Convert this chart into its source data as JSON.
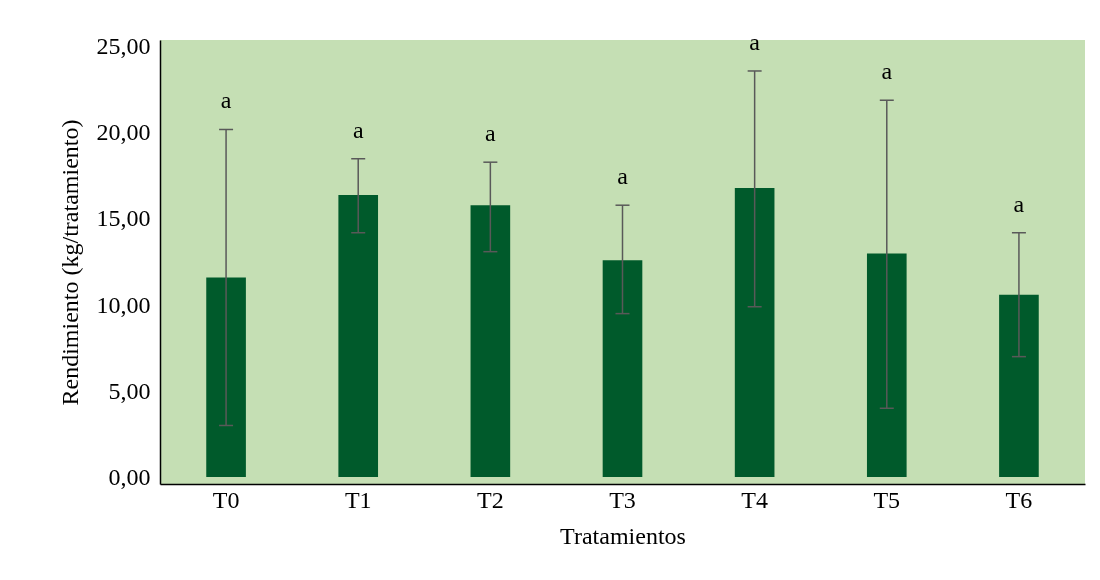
{
  "chart_data": {
    "type": "bar",
    "xlabel": "Tratamientos",
    "ylabel": "Rendimiento  (kg/tratamiento)",
    "categories": [
      "T0",
      "T1",
      "T2",
      "T3",
      "T4",
      "T5",
      "T6"
    ],
    "values": [
      11.6,
      16.4,
      15.8,
      12.6,
      16.8,
      13.0,
      10.6
    ],
    "color": "#005a2b",
    "errors": [
      [
        3.0,
        20.2
      ],
      [
        14.2,
        18.5
      ],
      [
        13.1,
        18.3
      ],
      [
        9.5,
        15.8
      ],
      [
        9.9,
        23.6
      ],
      [
        4.0,
        21.9
      ],
      [
        7.0,
        14.2
      ]
    ],
    "ylim": [
      -0.4,
      25.4
    ],
    "yticks": [
      {
        "value": 0,
        "label": "0,00"
      },
      {
        "value": 5,
        "label": "5,00"
      },
      {
        "value": 10,
        "label": "10,00"
      },
      {
        "value": 15,
        "label": "15,00"
      },
      {
        "value": 20,
        "label": "20,00"
      },
      {
        "value": 25,
        "label": "25,00"
      }
    ],
    "grid": false,
    "annotations": [
      {
        "text": "a",
        "x": "T0",
        "y": 20.2
      },
      {
        "text": "a",
        "x": "T1",
        "y": 18.5
      },
      {
        "text": "a",
        "x": "T2",
        "y": 18.3
      },
      {
        "text": "a",
        "x": "T3",
        "y": 15.8
      },
      {
        "text": "a",
        "x": "T4",
        "y": 23.6
      },
      {
        "text": "a",
        "x": "T5",
        "y": 21.9
      },
      {
        "text": "a",
        "x": "T6",
        "y": 14.2
      }
    ]
  }
}
